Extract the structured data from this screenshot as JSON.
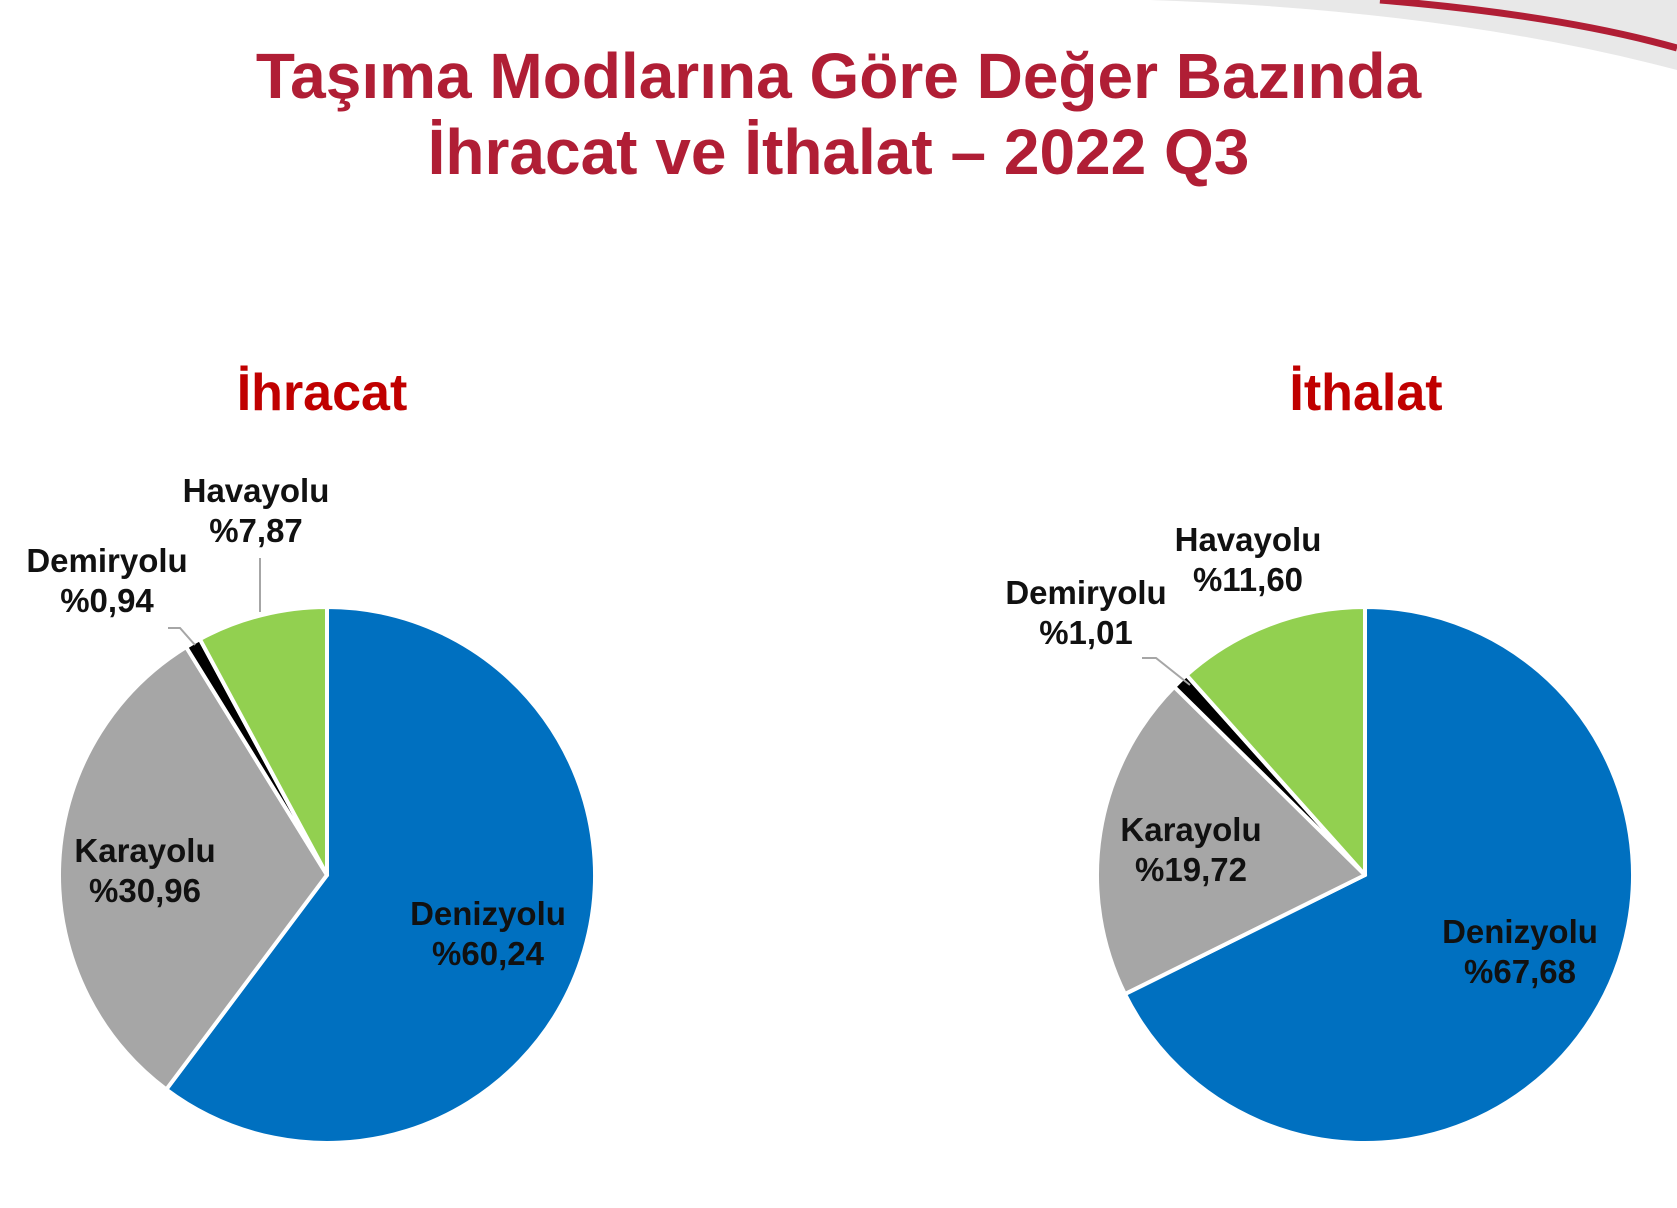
{
  "title": {
    "line1": "Taşıma Modlarına Göre Değer Bazında",
    "line2": "İhracat ve İthalat – 2022 Q3"
  },
  "colors": {
    "title": "#b01e35",
    "chart_title": "#c00000",
    "denizyolu": "#0070c0",
    "karayolu": "#a6a6a6",
    "demiryolu": "#000000",
    "havayolu": "#92d050"
  },
  "chart_data": [
    {
      "type": "pie",
      "title": "İhracat",
      "slices": [
        {
          "name": "Denizyolu",
          "value": 60.24,
          "label": "%60,24",
          "color": "#0070c0"
        },
        {
          "name": "Karayolu",
          "value": 30.96,
          "label": "%30,96",
          "color": "#a6a6a6"
        },
        {
          "name": "Demiryolu",
          "value": 0.94,
          "label": "%0,94",
          "color": "#000000"
        },
        {
          "name": "Havayolu",
          "value": 7.87,
          "label": "%7,87",
          "color": "#92d050"
        }
      ]
    },
    {
      "type": "pie",
      "title": "İthalat",
      "slices": [
        {
          "name": "Denizyolu",
          "value": 67.68,
          "label": "%67,68",
          "color": "#0070c0"
        },
        {
          "name": "Karayolu",
          "value": 19.72,
          "label": "%19,72",
          "color": "#a6a6a6"
        },
        {
          "name": "Demiryolu",
          "value": 1.01,
          "label": "%1,01",
          "color": "#000000"
        },
        {
          "name": "Havayolu",
          "value": 11.6,
          "label": "%11,60",
          "color": "#92d050"
        }
      ]
    }
  ]
}
